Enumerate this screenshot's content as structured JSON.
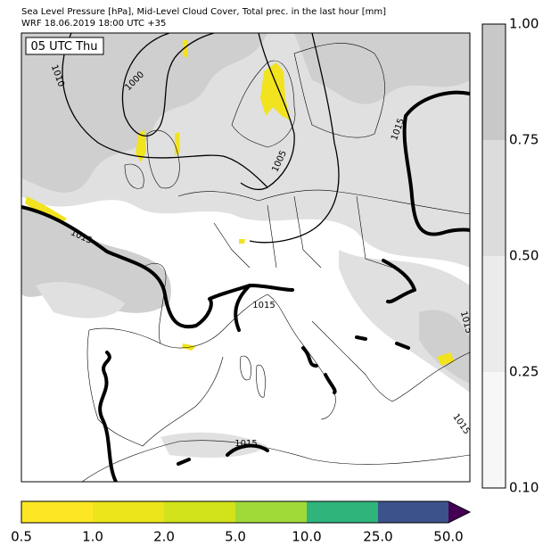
{
  "header": {
    "title": "Sea Level Pressure [hPa], Mid-Level Cloud Cover, Total prec. in the last hour [mm]",
    "subtitle": "WRF 18.06.2019 18:00 UTC +35"
  },
  "map": {
    "time_label": "05 UTC Thu",
    "contour_labels": [
      "1010",
      "1000",
      "1005",
      "1015",
      "1015",
      "1015",
      "1015",
      "1015",
      "1015"
    ]
  },
  "cloud_colorbar": {
    "ticks": [
      "1.00",
      "0.75",
      "0.50",
      "0.25",
      "0.10"
    ]
  },
  "precip_colorbar": {
    "ticks": [
      "0.5",
      "1.0",
      "2.0",
      "5.0",
      "10.0",
      "25.0",
      "50.0"
    ]
  }
}
